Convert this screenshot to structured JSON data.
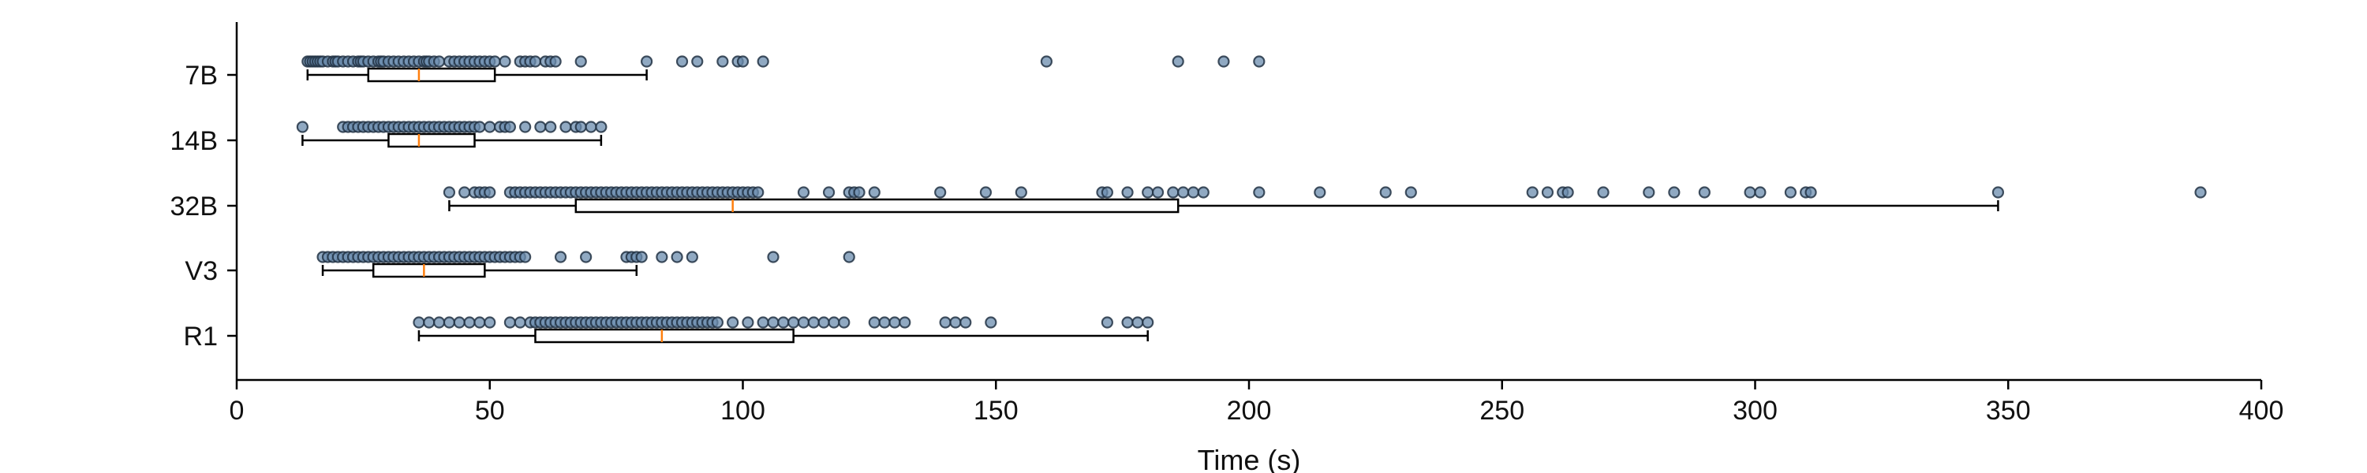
{
  "chart_data": {
    "type": "box",
    "orientation": "horizontal",
    "xlabel": "Time (s)",
    "ylabel": "",
    "xlim": [
      0,
      400
    ],
    "x_ticks": [
      "0",
      "50",
      "100",
      "150",
      "200",
      "250",
      "300",
      "350",
      "400"
    ],
    "grid": false,
    "legend": "none",
    "categories": [
      "7B",
      "14B",
      "32B",
      "V3",
      "R1"
    ],
    "colors": {
      "point_fill": "#6b8cae",
      "point_edge": "#223344",
      "median": "#ff7f0e",
      "box": "#000000"
    },
    "series": [
      {
        "name": "7B",
        "box": {
          "whisker_low": 14,
          "q1": 26,
          "median": 36,
          "q3": 51,
          "whisker_high": 81
        },
        "points": [
          14,
          14.5,
          15,
          15.5,
          16,
          16.5,
          17,
          18,
          19,
          19.5,
          20,
          21,
          22,
          23,
          24,
          24.5,
          25,
          26,
          27,
          28,
          28.5,
          29,
          30,
          31,
          32,
          33,
          34,
          35,
          36,
          37,
          37.5,
          38,
          39,
          40,
          42,
          43,
          44,
          45,
          46,
          47,
          48,
          49,
          50,
          51,
          53,
          56,
          57,
          58,
          59,
          61,
          62,
          63,
          68,
          81,
          88,
          91,
          96,
          99,
          100,
          104,
          160,
          186,
          195,
          202
        ]
      },
      {
        "name": "14B",
        "box": {
          "whisker_low": 13,
          "q1": 30,
          "median": 36,
          "q3": 47,
          "whisker_high": 72
        },
        "points": [
          13,
          21,
          22,
          23,
          24,
          25,
          26,
          27,
          28,
          29,
          30,
          31,
          32,
          33,
          34,
          35,
          36,
          37,
          38,
          39,
          40,
          41,
          42,
          43,
          44,
          45,
          46,
          47,
          48,
          50,
          52,
          53,
          54,
          57,
          60,
          62,
          65,
          67,
          68,
          70,
          72
        ]
      },
      {
        "name": "32B",
        "box": {
          "whisker_low": 42,
          "q1": 67,
          "median": 98,
          "q3": 186,
          "whisker_high": 348
        },
        "points": [
          42,
          45,
          47,
          48,
          49,
          50,
          54,
          55,
          56,
          57,
          58,
          59,
          60,
          61,
          62,
          63,
          64,
          65,
          66,
          67,
          68,
          69,
          70,
          71,
          72,
          73,
          74,
          75,
          76,
          77,
          78,
          79,
          80,
          81,
          82,
          83,
          84,
          85,
          86,
          87,
          88,
          89,
          90,
          91,
          92,
          93,
          94,
          95,
          96,
          97,
          98,
          99,
          100,
          101,
          102,
          103,
          112,
          117,
          121,
          122,
          123,
          126,
          139,
          148,
          155,
          171,
          172,
          176,
          180,
          182,
          185,
          187,
          189,
          191,
          202,
          214,
          227,
          232,
          256,
          259,
          262,
          263,
          270,
          279,
          284,
          290,
          299,
          301,
          307,
          310,
          311,
          348,
          388
        ]
      },
      {
        "name": "V3",
        "box": {
          "whisker_low": 17,
          "q1": 27,
          "median": 37,
          "q3": 49,
          "whisker_high": 79
        },
        "points": [
          17,
          18,
          19,
          20,
          21,
          22,
          23,
          24,
          25,
          26,
          27,
          28,
          29,
          30,
          31,
          32,
          33,
          34,
          35,
          36,
          37,
          38,
          39,
          40,
          41,
          42,
          43,
          44,
          45,
          46,
          47,
          48,
          49,
          50,
          51,
          52,
          53,
          54,
          55,
          56,
          57,
          64,
          69,
          77,
          78,
          79,
          80,
          84,
          87,
          90,
          106,
          121
        ]
      },
      {
        "name": "R1",
        "box": {
          "whisker_low": 36,
          "q1": 59,
          "median": 84,
          "q3": 110,
          "whisker_high": 180
        },
        "points": [
          36,
          38,
          40,
          42,
          44,
          46,
          48,
          50,
          54,
          56,
          58,
          59,
          60,
          61,
          62,
          63,
          64,
          65,
          66,
          67,
          68,
          69,
          70,
          71,
          72,
          73,
          74,
          75,
          76,
          77,
          78,
          79,
          80,
          81,
          82,
          83,
          84,
          85,
          86,
          87,
          88,
          89,
          90,
          91,
          92,
          93,
          94,
          95,
          98,
          101,
          104,
          106,
          108,
          110,
          112,
          114,
          116,
          118,
          120,
          126,
          128,
          130,
          132,
          140,
          142,
          144,
          149,
          172,
          176,
          178,
          180
        ]
      }
    ]
  }
}
